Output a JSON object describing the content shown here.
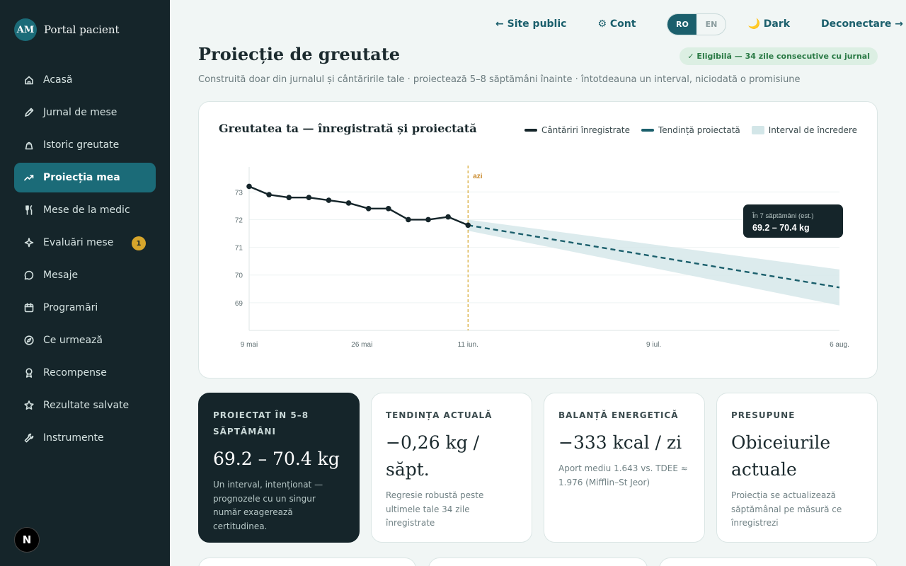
{
  "brand": {
    "initials": "AM",
    "name": "Portal pacient"
  },
  "sidebar": {
    "items": [
      {
        "label": "Acasă",
        "icon": "home-icon"
      },
      {
        "label": "Jurnal de mese",
        "icon": "pencil-icon"
      },
      {
        "label": "Istoric greutate",
        "icon": "weight-icon"
      },
      {
        "label": "Proiecția mea",
        "icon": "trend-icon",
        "active": true
      },
      {
        "label": "Mese de la medic",
        "icon": "fork-knife-icon"
      },
      {
        "label": "Evaluări mese",
        "icon": "sparkle-icon",
        "badge": "1"
      },
      {
        "label": "Mesaje",
        "icon": "chat-icon"
      },
      {
        "label": "Programări",
        "icon": "calendar-icon"
      },
      {
        "label": "Ce urmează",
        "icon": "compass-icon"
      },
      {
        "label": "Recompense",
        "icon": "award-icon"
      },
      {
        "label": "Rezultate salvate",
        "icon": "star-icon"
      },
      {
        "label": "Instrumente",
        "icon": "wrench-icon"
      }
    ],
    "footer_badge": "N"
  },
  "topbar": {
    "public_site": "← Site public",
    "account": "⚙ Cont",
    "lang_ro": "RO",
    "lang_en": "EN",
    "dark": "🌙 Dark",
    "logout": "Deconectare →"
  },
  "page": {
    "title": "Proiecție de greutate",
    "eligibility": "✓ Eligibilă — 34 zile consecutive cu jurnal",
    "subtitle": "Construită doar din jurnalul și cântăririle tale · proiectează 5–8 săptămâni înainte · întotdeauna un interval, niciodată o promisiune"
  },
  "chart": {
    "title": "Greutatea ta — înregistrată și proiectată",
    "legend": {
      "recorded": "Cântăriri înregistrate",
      "projected": "Tendință proiectată",
      "interval": "Interval de încredere"
    },
    "today_label": "azi",
    "tooltip_label": "În 7 săptămâni (est.)",
    "tooltip_value": "69.2 – 70.4 kg"
  },
  "chart_data": {
    "type": "line",
    "title": "Greutatea ta — înregistrată și proiectată",
    "x_ticks": [
      "9 mai",
      "26 mai",
      "11 iun.",
      "9 iul.",
      "6 aug."
    ],
    "y_ticks": [
      69,
      70,
      71,
      72,
      73
    ],
    "ylim": [
      68,
      73.8
    ],
    "today": "11 iun.",
    "grid": true,
    "legend_position": "top-right",
    "series": [
      {
        "name": "Cântăriri înregistrate",
        "color": "#15252a",
        "points": [
          [
            "9 mai",
            73.2
          ],
          [
            "12 mai",
            72.9
          ],
          [
            "15 mai",
            72.8
          ],
          [
            "18 mai",
            72.8
          ],
          [
            "21 mai",
            72.7
          ],
          [
            "24 mai",
            72.6
          ],
          [
            "27 mai",
            72.4
          ],
          [
            "30 mai",
            72.4
          ],
          [
            "2 iun.",
            72.0
          ],
          [
            "5 iun.",
            72.0
          ],
          [
            "8 iun.",
            72.1
          ],
          [
            "11 iun.",
            71.8
          ]
        ]
      },
      {
        "name": "Tendință proiectată",
        "color": "#1b5f6c",
        "points": [
          [
            "11 iun.",
            71.8
          ],
          [
            "6 aug.",
            69.55
          ]
        ]
      },
      {
        "name": "Interval de încredere",
        "color": "#d3e6e8",
        "band": [
          [
            "11 iun.",
            71.6,
            72.0
          ],
          [
            "6 aug.",
            68.9,
            70.2
          ]
        ]
      }
    ]
  },
  "stats": [
    {
      "label": "Proiectat în 5–8 săptămâni",
      "value": "69.2 – 70.4 kg",
      "desc": "Un interval, intenționat — prognozele cu un singur număr exagerează certitudinea."
    },
    {
      "label": "Tendința actuală",
      "value": "−0,26 kg / săpt.",
      "desc": "Regresie robustă peste ultimele tale 34 zile înregistrate"
    },
    {
      "label": "Balanță energetică",
      "value": "−333 kcal / zi",
      "desc": "Aport mediu 1.643 vs. TDEE ≈ 1.976 (Mifflin–St Jeor)"
    },
    {
      "label": "Presupune",
      "value": "Obiceiurile actuale",
      "desc": "Proiecția se actualizează săptămânal pe măsură ce înregistrezi"
    }
  ],
  "colors": {
    "accent": "#1b6b78",
    "sidebar": "#15252a",
    "today_line": "#d6a52b",
    "badge": "#d6a52b"
  }
}
